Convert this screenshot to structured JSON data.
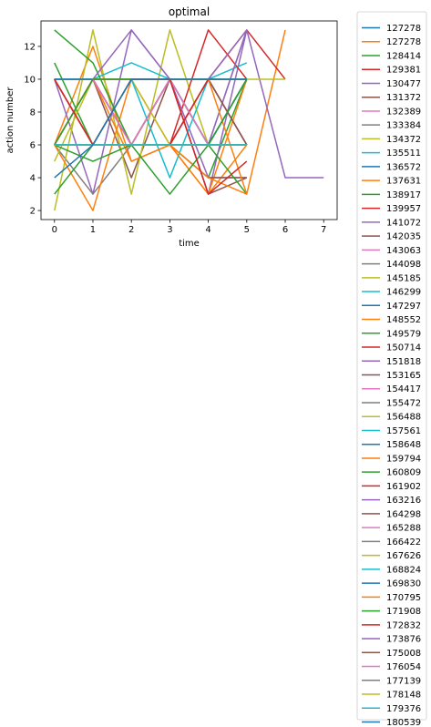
{
  "chart_data": {
    "type": "line",
    "title": "optimal",
    "xlabel": "time",
    "ylabel": "action number",
    "xlim": [
      -0.35,
      7.35
    ],
    "ylim": [
      1.45,
      13.55
    ],
    "xticks": [
      0,
      1,
      2,
      3,
      4,
      5,
      6,
      7
    ],
    "yticks": [
      2,
      4,
      6,
      8,
      10,
      12
    ],
    "grid": false,
    "legend_position": "outside-right",
    "series": [
      {
        "name": "127278",
        "color": "#1f77b4",
        "x": [
          0,
          1,
          2,
          3,
          4,
          5
        ],
        "y": [
          10,
          6,
          6,
          10,
          10,
          10
        ]
      },
      {
        "name": "127278",
        "color": "#ff7f0e",
        "x": [
          0,
          1,
          2,
          3,
          4,
          5
        ],
        "y": [
          6,
          12,
          5,
          6,
          3,
          6
        ]
      },
      {
        "name": "128414",
        "color": "#2ca02c",
        "x": [
          0,
          1,
          2,
          3,
          4,
          5
        ],
        "y": [
          11,
          6,
          6,
          6,
          4,
          10
        ]
      },
      {
        "name": "129381",
        "color": "#d62728",
        "x": [
          0,
          1,
          2,
          3,
          4,
          5
        ],
        "y": [
          6,
          10,
          6,
          6,
          6,
          6
        ]
      },
      {
        "name": "130477",
        "color": "#9467bd",
        "x": [
          0,
          1,
          2,
          3,
          4,
          5
        ],
        "y": [
          10,
          3,
          13,
          10,
          3,
          13
        ]
      },
      {
        "name": "131372",
        "color": "#8c564b",
        "x": [
          0,
          1,
          2,
          3,
          4,
          5
        ],
        "y": [
          6,
          10,
          4,
          10,
          3,
          4
        ]
      },
      {
        "name": "132389",
        "color": "#e377c2",
        "x": [
          0,
          1,
          2,
          3,
          4,
          5
        ],
        "y": [
          10,
          6,
          10,
          10,
          6,
          6
        ]
      },
      {
        "name": "133384",
        "color": "#7f7f7f",
        "x": [
          0,
          1,
          2,
          3,
          4,
          5
        ],
        "y": [
          6,
          3,
          6,
          10,
          6,
          13
        ]
      },
      {
        "name": "134372",
        "color": "#bcbd22",
        "x": [
          0,
          1,
          2,
          3,
          4,
          5
        ],
        "y": [
          2,
          13,
          3,
          13,
          6,
          10
        ]
      },
      {
        "name": "135511",
        "color": "#17becf",
        "x": [
          0,
          1,
          2,
          3,
          4,
          5
        ],
        "y": [
          10,
          10,
          11,
          10,
          10,
          11
        ]
      },
      {
        "name": "136572",
        "color": "#1f77b4",
        "x": [
          0,
          1,
          2,
          3,
          4,
          5
        ],
        "y": [
          6,
          10,
          10,
          10,
          6,
          10
        ]
      },
      {
        "name": "137631",
        "color": "#ff7f0e",
        "x": [
          0,
          1,
          2,
          3,
          4,
          5
        ],
        "y": [
          6,
          2,
          10,
          6,
          3,
          10
        ]
      },
      {
        "name": "138917",
        "color": "#2ca02c",
        "x": [
          0,
          1,
          2,
          3,
          4,
          5
        ],
        "y": [
          13,
          11,
          6,
          10,
          10,
          10
        ]
      },
      {
        "name": "139957",
        "color": "#d62728",
        "x": [
          0,
          1,
          2,
          3,
          4,
          5
        ],
        "y": [
          10,
          6,
          6,
          6,
          13,
          10
        ]
      },
      {
        "name": "141072",
        "color": "#9467bd",
        "x": [
          0,
          1,
          2,
          3,
          4,
          5
        ],
        "y": [
          10,
          6,
          10,
          10,
          4,
          4
        ]
      },
      {
        "name": "142035",
        "color": "#8c564b",
        "x": [
          0,
          1,
          2,
          3,
          4,
          5
        ],
        "y": [
          6,
          6,
          6,
          6,
          4,
          4
        ]
      },
      {
        "name": "143063",
        "color": "#e377c2",
        "x": [
          0,
          1,
          2,
          3,
          4,
          5
        ],
        "y": [
          6,
          6,
          6,
          6,
          10,
          6
        ]
      },
      {
        "name": "144098",
        "color": "#7f7f7f",
        "x": [
          0,
          1,
          2,
          3,
          4,
          5
        ],
        "y": [
          10,
          6,
          6,
          6,
          6,
          10
        ]
      },
      {
        "name": "145185",
        "color": "#bcbd22",
        "x": [
          0,
          1,
          2,
          3,
          4,
          5
        ],
        "y": [
          5,
          10,
          10,
          6,
          10,
          10
        ]
      },
      {
        "name": "146299",
        "color": "#17becf",
        "x": [
          0,
          1,
          2,
          3,
          4,
          5
        ],
        "y": [
          10,
          6,
          10,
          4,
          10,
          6
        ]
      },
      {
        "name": "147297",
        "color": "#1f77b4",
        "x": [
          0,
          1,
          2,
          3,
          4,
          5
        ],
        "y": [
          10,
          10,
          6,
          10,
          10,
          10
        ]
      },
      {
        "name": "148552",
        "color": "#ff7f0e",
        "x": [
          0,
          1,
          2,
          3,
          4,
          5
        ],
        "y": [
          6,
          10,
          5,
          6,
          4,
          3
        ]
      },
      {
        "name": "149579",
        "color": "#2ca02c",
        "x": [
          0,
          1,
          2,
          3,
          4,
          5
        ],
        "y": [
          6,
          5,
          6,
          3,
          6,
          3
        ]
      },
      {
        "name": "150714",
        "color": "#d62728",
        "x": [
          0,
          1,
          2,
          3,
          4,
          5
        ],
        "y": [
          6,
          10,
          6,
          6,
          10,
          6
        ]
      },
      {
        "name": "151818",
        "color": "#9467bd",
        "x": [
          0,
          1,
          2,
          3,
          4,
          5
        ],
        "y": [
          10,
          6,
          6,
          10,
          6,
          13
        ]
      },
      {
        "name": "153165",
        "color": "#8c564b",
        "x": [
          0,
          1,
          2,
          3,
          4,
          5
        ],
        "y": [
          10,
          10,
          6,
          6,
          10,
          6
        ]
      },
      {
        "name": "154417",
        "color": "#e377c2",
        "x": [
          0,
          1,
          2,
          3,
          4,
          5
        ],
        "y": [
          6,
          6,
          6,
          6,
          6,
          6
        ]
      },
      {
        "name": "155472",
        "color": "#7f7f7f",
        "x": [
          0,
          1,
          2,
          3,
          4,
          5
        ],
        "y": [
          6,
          10,
          6,
          6,
          6,
          10
        ]
      },
      {
        "name": "156488",
        "color": "#bcbd22",
        "x": [
          0,
          1,
          2,
          3,
          4,
          5
        ],
        "y": [
          10,
          10,
          10,
          10,
          10,
          10
        ]
      },
      {
        "name": "157561",
        "color": "#17becf",
        "x": [
          0,
          1,
          2,
          3,
          4,
          5
        ],
        "y": [
          6,
          10,
          10,
          10,
          6,
          10
        ]
      },
      {
        "name": "158648",
        "color": "#1f77b4",
        "x": [
          0,
          1,
          2,
          3,
          4,
          5
        ],
        "y": [
          10,
          10,
          10,
          10,
          6,
          10
        ]
      },
      {
        "name": "159794",
        "color": "#ff7f0e",
        "x": [
          0,
          1,
          2,
          3,
          4,
          5,
          6
        ],
        "y": [
          10,
          6,
          6,
          10,
          10,
          3,
          13
        ]
      },
      {
        "name": "160809",
        "color": "#2ca02c",
        "x": [
          0,
          1,
          2,
          3,
          4,
          5
        ],
        "y": [
          3,
          6,
          10,
          10,
          6,
          10
        ]
      },
      {
        "name": "161902",
        "color": "#d62728",
        "x": [
          0,
          1,
          2,
          3,
          4,
          5,
          6
        ],
        "y": [
          6,
          6,
          6,
          6,
          10,
          13,
          10
        ]
      },
      {
        "name": "163216",
        "color": "#9467bd",
        "x": [
          0,
          1,
          2,
          3,
          4,
          5,
          6,
          7
        ],
        "y": [
          10,
          10,
          13,
          10,
          10,
          13,
          4,
          4
        ]
      },
      {
        "name": "164298",
        "color": "#8c564b",
        "x": [
          0,
          1,
          2,
          3,
          4,
          5
        ],
        "y": [
          10,
          10,
          6,
          10,
          10,
          10
        ]
      },
      {
        "name": "165288",
        "color": "#e377c2",
        "x": [
          0,
          1,
          2,
          3,
          4,
          5
        ],
        "y": [
          6,
          10,
          6,
          10,
          6,
          6
        ]
      },
      {
        "name": "166422",
        "color": "#7f7f7f",
        "x": [
          0,
          1,
          2,
          3,
          4,
          5
        ],
        "y": [
          6,
          6,
          6,
          6,
          6,
          6
        ]
      },
      {
        "name": "167626",
        "color": "#bcbd22",
        "x": [
          0,
          1,
          2,
          3,
          4,
          5,
          6
        ],
        "y": [
          10,
          10,
          10,
          10,
          10,
          10,
          10
        ]
      },
      {
        "name": "168824",
        "color": "#17becf",
        "x": [
          0,
          1,
          2,
          3,
          4,
          5
        ],
        "y": [
          10,
          10,
          10,
          10,
          10,
          10
        ]
      },
      {
        "name": "169830",
        "color": "#1f77b4",
        "x": [
          0,
          1,
          2,
          3,
          4,
          5
        ],
        "y": [
          10,
          10,
          10,
          10,
          10,
          10
        ]
      },
      {
        "name": "170795",
        "color": "#ff7f0e",
        "x": [
          0,
          1,
          2,
          3,
          4,
          5
        ],
        "y": [
          6,
          10,
          10,
          10,
          10,
          10
        ]
      },
      {
        "name": "171908",
        "color": "#2ca02c",
        "x": [
          0,
          1,
          2,
          3,
          4,
          5
        ],
        "y": [
          6,
          10,
          10,
          10,
          10,
          10
        ]
      },
      {
        "name": "172832",
        "color": "#d62728",
        "x": [
          0,
          1,
          2,
          3,
          4,
          5
        ],
        "y": [
          10,
          6,
          10,
          10,
          3,
          5
        ]
      },
      {
        "name": "173876",
        "color": "#9467bd",
        "x": [
          0,
          1,
          2,
          3,
          4,
          5
        ],
        "y": [
          6,
          6,
          6,
          6,
          6,
          6
        ]
      },
      {
        "name": "175008",
        "color": "#8c564b",
        "x": [
          0,
          1,
          2,
          3,
          4,
          5
        ],
        "y": [
          6,
          6,
          6,
          6,
          6,
          6
        ]
      },
      {
        "name": "176054",
        "color": "#e377c2",
        "x": [
          0,
          1,
          2,
          3,
          4,
          5
        ],
        "y": [
          6,
          6,
          6,
          6,
          6,
          6
        ]
      },
      {
        "name": "177139",
        "color": "#7f7f7f",
        "x": [
          0,
          1,
          2,
          3,
          4,
          5
        ],
        "y": [
          6,
          6,
          6,
          6,
          6,
          6
        ]
      },
      {
        "name": "178148",
        "color": "#bcbd22",
        "x": [
          0,
          1,
          2,
          3,
          4,
          5
        ],
        "y": [
          6,
          6,
          6,
          6,
          6,
          6
        ]
      },
      {
        "name": "179376",
        "color": "#17becf",
        "x": [
          0,
          1,
          2,
          3,
          4,
          5
        ],
        "y": [
          6,
          6,
          6,
          6,
          6,
          6
        ]
      },
      {
        "name": "180539",
        "color": "#1f77b4",
        "x": [
          0,
          1,
          2,
          3,
          4,
          5
        ],
        "y": [
          4,
          6,
          10,
          10,
          10,
          10
        ]
      }
    ]
  }
}
